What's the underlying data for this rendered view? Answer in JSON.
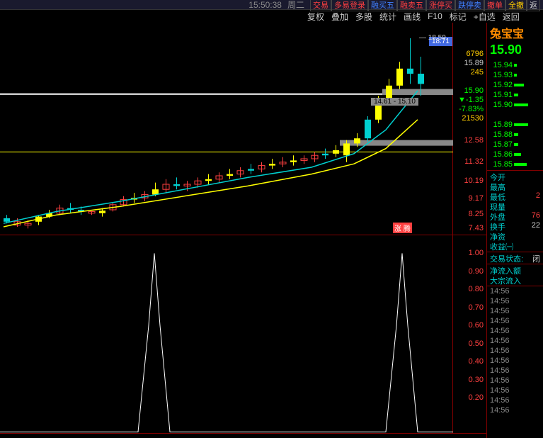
{
  "topbar": {
    "time": "15:50:38",
    "day": "周二",
    "buttons": [
      {
        "label": "交易",
        "color": "#ff4040"
      },
      {
        "label": "多易登录",
        "color": "#ff4040"
      },
      {
        "label": "融买五",
        "color": "#4080ff"
      },
      {
        "label": "融卖五",
        "color": "#ff4040"
      },
      {
        "label": "涨停买",
        "color": "#ff4040"
      },
      {
        "label": "跌停卖",
        "color": "#4080ff"
      },
      {
        "label": "撤单",
        "color": "#ff4040"
      },
      {
        "label": "全撤",
        "color": "#ffcc00"
      },
      {
        "label": "返",
        "color": "#ccc"
      }
    ]
  },
  "toolbar": {
    "items": [
      "复权",
      "叠加",
      "多股",
      "统计",
      "画线",
      "F10",
      "标记",
      "+自选",
      "返回"
    ]
  },
  "stock": {
    "name": "兔宝宝",
    "price": "15.90",
    "price_color": "#00ff00"
  },
  "current_label": {
    "value": "18.71",
    "bg": "#4169e1"
  },
  "quotes_right": [
    {
      "v1": "6796",
      "c1": "#ffcc00",
      "v2": "15.94",
      "c2": "#00ff00",
      "bar": 4
    },
    {
      "v1": "15.89",
      "c1": "#ccc",
      "v2": "15.93",
      "c2": "#00ff00",
      "bar": 4
    },
    {
      "v1": "245",
      "c1": "#ffcc00",
      "v2": "15.92",
      "c2": "#00ff00",
      "bar": 14
    },
    {
      "v1": "",
      "c1": "",
      "v2": "15.91",
      "c2": "#00ff00",
      "bar": 6
    },
    {
      "v1": "15.90",
      "c1": "#00ff00",
      "v2": "15.90",
      "c2": "#00ff00",
      "bar": 20
    },
    {
      "v1": "▼-1.35",
      "c1": "#00ff00",
      "v2": "",
      "c2": "",
      "bar": 0
    },
    {
      "v1": "-7.83%",
      "c1": "#00ff00",
      "v2": "15.89",
      "c2": "#00ff00",
      "bar": 20
    },
    {
      "v1": "21530",
      "c1": "#ffcc00",
      "v2": "15.88",
      "c2": "#00ff00",
      "bar": 6
    },
    {
      "v1": "",
      "c1": "",
      "v2": "15.87",
      "c2": "#00ff00",
      "bar": 6
    },
    {
      "v1": "",
      "c1": "",
      "v2": "15.86",
      "c2": "#00ff00",
      "bar": 10
    },
    {
      "v1": "",
      "c1": "",
      "v2": "15.85",
      "c2": "#00ff00",
      "bar": 18
    }
  ],
  "info_rows": [
    {
      "lbl": "今开",
      "val": ""
    },
    {
      "lbl": "最高",
      "val": ""
    },
    {
      "lbl": "最低",
      "val": "2",
      "vc": "#ff4040"
    },
    {
      "lbl": "现量",
      "val": ""
    },
    {
      "lbl": "外盘",
      "val": "76",
      "vc": "#ff4040"
    },
    {
      "lbl": "换手",
      "val": "22",
      "vc": "#ccc"
    },
    {
      "lbl": "净资",
      "val": ""
    },
    {
      "lbl": "收益㈠",
      "val": ""
    }
  ],
  "trade_status": {
    "lbl": "交易状态:",
    "val": "闭"
  },
  "flow_rows": [
    "净流入额",
    "大宗流入"
  ],
  "time_list": [
    "14:56",
    "14:56",
    "14:56",
    "14:56",
    "14:56",
    "14:56",
    "14:56",
    "14:56",
    "14:56",
    "14:56",
    "14:56",
    "14:56",
    "14:56"
  ],
  "candle_chart": {
    "ylim": [
      7.0,
      19.5
    ],
    "axis_color": "#800000",
    "yticks": [
      {
        "v": 12.58,
        "c": "#ff4040",
        "lbl": "12.58"
      },
      {
        "v": 11.32,
        "c": "#ff4040",
        "lbl": "11.32"
      },
      {
        "v": 10.19,
        "c": "#ff4040",
        "lbl": "10.19"
      },
      {
        "v": 9.17,
        "c": "#ff4040",
        "lbl": "9.17"
      },
      {
        "v": 8.25,
        "c": "#ff4040",
        "lbl": "8.25"
      },
      {
        "v": 7.43,
        "c": "#ff4040",
        "lbl": "7.43"
      }
    ],
    "hlines": [
      {
        "y": 11.9,
        "color": "#ffff00",
        "w": 1
      },
      {
        "y": 15.3,
        "color": "#ffffff",
        "w": 2
      }
    ],
    "peak_label": "18.59",
    "level_label": "14.61 - 15.10",
    "candles": [
      {
        "x": 5,
        "o": 8.0,
        "h": 8.2,
        "l": 7.7,
        "c": 7.8,
        "col": "#00d0d0"
      },
      {
        "x": 20,
        "o": 7.8,
        "h": 8.0,
        "l": 7.5,
        "c": 7.6,
        "col": "#ff4040"
      },
      {
        "x": 35,
        "o": 7.6,
        "h": 7.9,
        "l": 7.4,
        "c": 7.7,
        "col": "#ff4040"
      },
      {
        "x": 50,
        "o": 7.8,
        "h": 8.2,
        "l": 7.6,
        "c": 8.1,
        "col": "#ffff00"
      },
      {
        "x": 65,
        "o": 8.1,
        "h": 8.5,
        "l": 8.0,
        "c": 8.3,
        "col": "#ffff00"
      },
      {
        "x": 80,
        "o": 8.3,
        "h": 8.8,
        "l": 8.2,
        "c": 8.6,
        "col": "#ff4040"
      },
      {
        "x": 95,
        "o": 8.6,
        "h": 8.9,
        "l": 8.3,
        "c": 8.5,
        "col": "#00d0d0"
      },
      {
        "x": 110,
        "o": 8.5,
        "h": 8.7,
        "l": 8.2,
        "c": 8.4,
        "col": "#00d0d0"
      },
      {
        "x": 125,
        "o": 8.4,
        "h": 8.4,
        "l": 8.2,
        "c": 8.3,
        "col": "#ff4040"
      },
      {
        "x": 140,
        "o": 8.3,
        "h": 8.6,
        "l": 8.1,
        "c": 8.45,
        "col": "#ffff00"
      },
      {
        "x": 155,
        "o": 8.5,
        "h": 8.9,
        "l": 8.4,
        "c": 8.8,
        "col": "#ff4040"
      },
      {
        "x": 170,
        "o": 8.8,
        "h": 9.3,
        "l": 8.7,
        "c": 9.1,
        "col": "#ff4040"
      },
      {
        "x": 185,
        "o": 9.1,
        "h": 9.5,
        "l": 8.9,
        "c": 9.2,
        "col": "#ffff00"
      },
      {
        "x": 200,
        "o": 9.2,
        "h": 9.6,
        "l": 9.0,
        "c": 9.4,
        "col": "#ff4040"
      },
      {
        "x": 215,
        "o": 9.4,
        "h": 10.1,
        "l": 9.3,
        "c": 9.7,
        "col": "#ffff00"
      },
      {
        "x": 230,
        "o": 9.7,
        "h": 10.3,
        "l": 9.5,
        "c": 10.0,
        "col": "#ff4040"
      },
      {
        "x": 245,
        "o": 10.0,
        "h": 10.4,
        "l": 9.7,
        "c": 9.9,
        "col": "#00d0d0"
      },
      {
        "x": 260,
        "o": 9.9,
        "h": 10.2,
        "l": 9.6,
        "c": 10.0,
        "col": "#ff4040"
      },
      {
        "x": 275,
        "o": 10.0,
        "h": 10.4,
        "l": 9.8,
        "c": 10.2,
        "col": "#ff4040"
      },
      {
        "x": 290,
        "o": 10.2,
        "h": 10.6,
        "l": 10.0,
        "c": 10.3,
        "col": "#ffff00"
      },
      {
        "x": 305,
        "o": 10.3,
        "h": 10.7,
        "l": 10.1,
        "c": 10.5,
        "col": "#ff4040"
      },
      {
        "x": 320,
        "o": 10.5,
        "h": 10.9,
        "l": 10.3,
        "c": 10.6,
        "col": "#ffff00"
      },
      {
        "x": 335,
        "o": 10.6,
        "h": 11.0,
        "l": 10.4,
        "c": 10.8,
        "col": "#ff4040"
      },
      {
        "x": 350,
        "o": 10.8,
        "h": 11.2,
        "l": 10.6,
        "c": 10.9,
        "col": "#00d0d0"
      },
      {
        "x": 365,
        "o": 10.9,
        "h": 11.3,
        "l": 10.7,
        "c": 11.1,
        "col": "#ff4040"
      },
      {
        "x": 380,
        "o": 11.1,
        "h": 11.5,
        "l": 10.9,
        "c": 11.2,
        "col": "#ffff00"
      },
      {
        "x": 395,
        "o": 11.2,
        "h": 11.6,
        "l": 11.0,
        "c": 11.3,
        "col": "#ff4040"
      },
      {
        "x": 410,
        "o": 11.3,
        "h": 11.7,
        "l": 11.1,
        "c": 11.4,
        "col": "#ffff00"
      },
      {
        "x": 425,
        "o": 11.4,
        "h": 11.7,
        "l": 11.2,
        "c": 11.5,
        "col": "#ff4040"
      },
      {
        "x": 440,
        "o": 11.5,
        "h": 11.9,
        "l": 11.3,
        "c": 11.7,
        "col": "#ff4040"
      },
      {
        "x": 455,
        "o": 11.7,
        "h": 12.1,
        "l": 11.5,
        "c": 11.8,
        "col": "#00d0d0"
      },
      {
        "x": 470,
        "o": 11.8,
        "h": 12.3,
        "l": 11.6,
        "c": 12.0,
        "col": "#ffff00"
      },
      {
        "x": 485,
        "o": 11.7,
        "h": 12.6,
        "l": 11.3,
        "c": 12.4,
        "col": "#ffff00"
      },
      {
        "x": 500,
        "o": 12.4,
        "h": 13.0,
        "l": 12.2,
        "c": 12.7,
        "col": "#ffff00"
      },
      {
        "x": 515,
        "o": 12.7,
        "h": 14.0,
        "l": 12.5,
        "c": 13.8,
        "col": "#00d0d0"
      },
      {
        "x": 530,
        "o": 13.8,
        "h": 15.2,
        "l": 13.6,
        "c": 14.9,
        "col": "#ffff00"
      },
      {
        "x": 545,
        "o": 14.9,
        "h": 16.2,
        "l": 14.7,
        "c": 15.8,
        "col": "#ffff00"
      },
      {
        "x": 560,
        "o": 15.8,
        "h": 17.2,
        "l": 15.6,
        "c": 16.8,
        "col": "#ffff00"
      },
      {
        "x": 575,
        "o": 16.8,
        "h": 18.59,
        "l": 15.9,
        "c": 16.5,
        "col": "#00d0d0"
      },
      {
        "x": 590,
        "o": 16.5,
        "h": 17.5,
        "l": 15.2,
        "c": 15.9,
        "col": "#00d0d0"
      }
    ],
    "ma_yellow": [
      [
        5,
        7.5
      ],
      [
        80,
        8.2
      ],
      [
        170,
        8.7
      ],
      [
        260,
        9.3
      ],
      [
        350,
        9.9
      ],
      [
        440,
        10.6
      ],
      [
        500,
        11.2
      ],
      [
        545,
        12.1
      ],
      [
        590,
        13.8
      ]
    ],
    "ma_cyan": [
      [
        5,
        7.7
      ],
      [
        80,
        8.4
      ],
      [
        170,
        9.0
      ],
      [
        260,
        9.7
      ],
      [
        350,
        10.4
      ],
      [
        440,
        11.0
      ],
      [
        500,
        11.8
      ],
      [
        545,
        13.2
      ],
      [
        590,
        15.5
      ]
    ]
  },
  "indicator_chart": {
    "ylim": [
      0,
      1.1
    ],
    "yticks": [
      {
        "v": 1.0,
        "lbl": "1.00"
      },
      {
        "v": 0.9,
        "lbl": "0.90"
      },
      {
        "v": 0.8,
        "lbl": "0.80"
      },
      {
        "v": 0.7,
        "lbl": "0.70"
      },
      {
        "v": 0.6,
        "lbl": "0.60"
      },
      {
        "v": 0.5,
        "lbl": "0.50"
      },
      {
        "v": 0.4,
        "lbl": "0.40"
      },
      {
        "v": 0.3,
        "lbl": "0.30"
      },
      {
        "v": 0.2,
        "lbl": "0.20"
      }
    ],
    "line": [
      [
        0,
        0.01
      ],
      [
        195,
        0.01
      ],
      [
        210,
        0.6
      ],
      [
        218,
        1.0
      ],
      [
        226,
        0.6
      ],
      [
        240,
        0.01
      ],
      [
        545,
        0.01
      ],
      [
        560,
        0.6
      ],
      [
        568,
        1.0
      ],
      [
        576,
        0.6
      ],
      [
        590,
        0.01
      ],
      [
        640,
        0.01
      ]
    ]
  },
  "zhang_badge": "涨 腾"
}
